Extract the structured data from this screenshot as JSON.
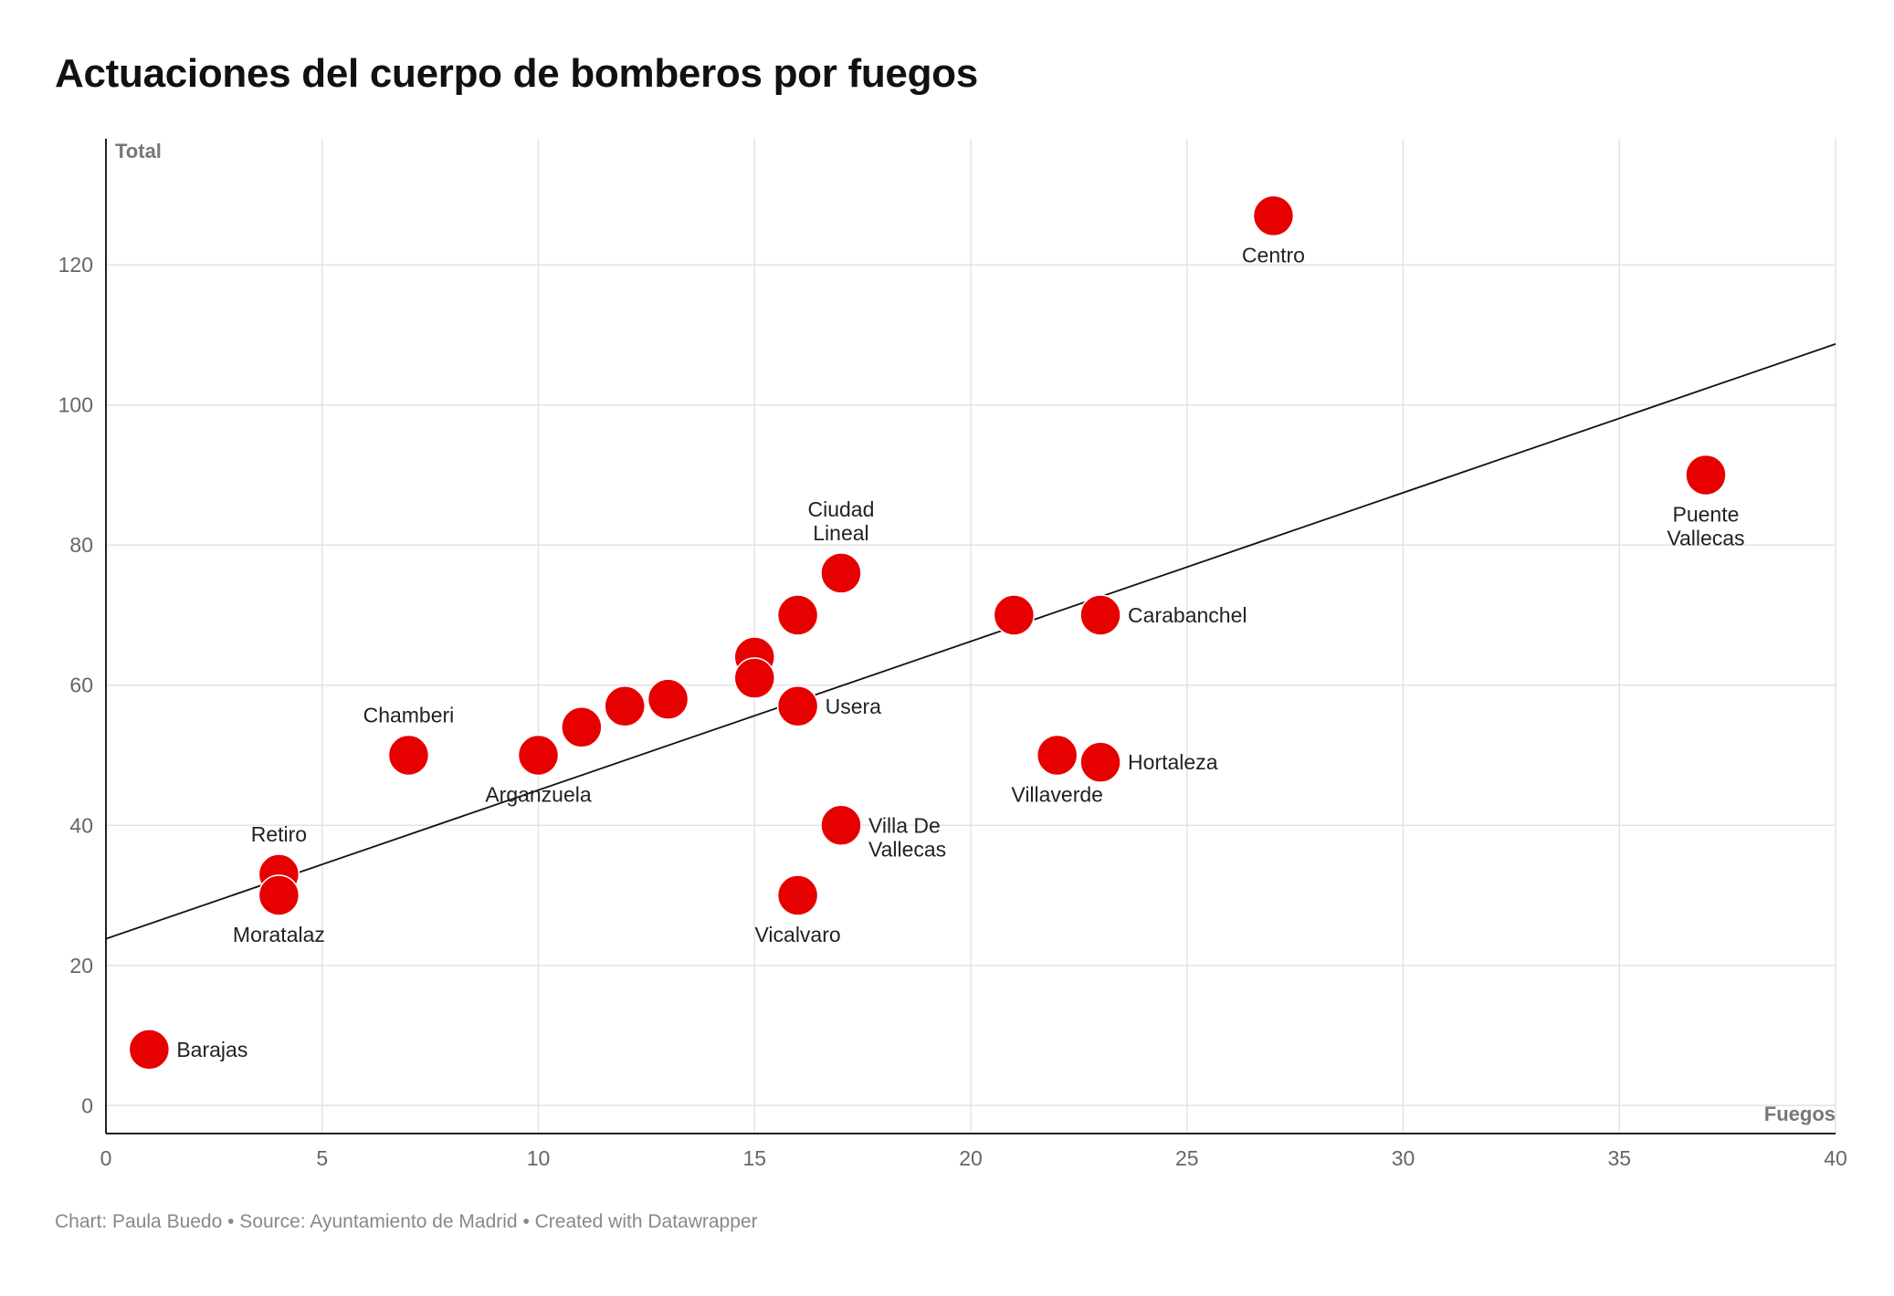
{
  "title": "Actuaciones del cuerpo de bomberos por fuegos",
  "footer": "Chart: Paula Buedo • Source: Ayuntamiento de Madrid • Created with Datawrapper",
  "colors": {
    "point": "#e60000",
    "grid": "#e3e3e3",
    "axis": "#222222",
    "trend": "#111111"
  },
  "chart_data": {
    "type": "scatter",
    "title": "Actuaciones del cuerpo de bomberos por fuegos",
    "xlabel": "Fuegos",
    "ylabel": "Total",
    "xlim": [
      0,
      40
    ],
    "ylim": [
      -4,
      138
    ],
    "x_ticks": [
      0,
      5,
      10,
      15,
      20,
      25,
      30,
      35,
      40
    ],
    "y_ticks": [
      0,
      20,
      40,
      60,
      80,
      100,
      120
    ],
    "grid": true,
    "trendline": {
      "x": [
        0,
        40
      ],
      "y": [
        23.8,
        108.7
      ]
    },
    "points": [
      {
        "x": 1,
        "y": 8,
        "label": "Barajas"
      },
      {
        "x": 4,
        "y": 33,
        "label": "Retiro"
      },
      {
        "x": 4,
        "y": 30,
        "label": "Moratalaz"
      },
      {
        "x": 7,
        "y": 50,
        "label": "Chamberi"
      },
      {
        "x": 10,
        "y": 50,
        "label": "Arganzuela"
      },
      {
        "x": 11,
        "y": 54,
        "label": ""
      },
      {
        "x": 12,
        "y": 57,
        "label": ""
      },
      {
        "x": 13,
        "y": 58,
        "label": ""
      },
      {
        "x": 15,
        "y": 64,
        "label": ""
      },
      {
        "x": 15,
        "y": 61,
        "label": ""
      },
      {
        "x": 16,
        "y": 70,
        "label": ""
      },
      {
        "x": 16,
        "y": 57,
        "label": "Usera"
      },
      {
        "x": 16,
        "y": 30,
        "label": "Vicalvaro"
      },
      {
        "x": 17,
        "y": 76,
        "label": "Ciudad\nLineal"
      },
      {
        "x": 17,
        "y": 40,
        "label": "Villa De\nVallecas"
      },
      {
        "x": 21,
        "y": 70,
        "label": ""
      },
      {
        "x": 22,
        "y": 50,
        "label": "Villaverde"
      },
      {
        "x": 23,
        "y": 70,
        "label": "Carabanchel"
      },
      {
        "x": 23,
        "y": 49,
        "label": "Hortaleza"
      },
      {
        "x": 27,
        "y": 127,
        "label": "Centro"
      },
      {
        "x": 37,
        "y": 90,
        "label": "Puente\nVallecas"
      }
    ]
  }
}
